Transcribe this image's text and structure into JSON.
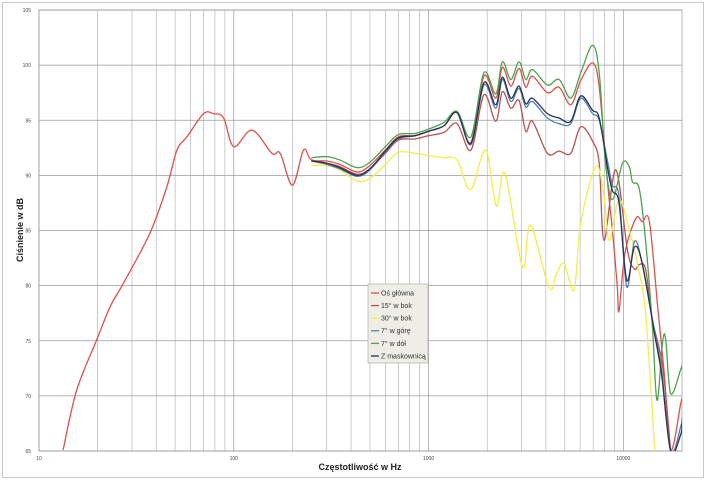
{
  "chart_data": {
    "type": "line",
    "title": "",
    "xlabel": "Częstotliwość w Hz",
    "ylabel": "Ciśnienie w dB",
    "xscale": "log",
    "xlim": [
      10,
      20000
    ],
    "ylim": [
      65,
      105
    ],
    "x_ticks": [
      "10",
      "100",
      "1000",
      "10000"
    ],
    "x_tick_values": [
      10,
      100,
      1000,
      10000
    ],
    "y_ticks": [
      "65",
      "70",
      "75",
      "80",
      "85",
      "90",
      "95",
      "100",
      "105"
    ],
    "grid": true,
    "legend_position": "center-bottom",
    "series": [
      {
        "name": "Oś główna",
        "color": "#e0504a",
        "x": [
          13.3,
          15.6,
          19.8,
          23.2,
          27.1,
          37.2,
          45.4,
          51.1,
          57.5,
          70,
          78.7,
          88.7,
          100,
          124,
          157,
          173,
          200,
          228,
          250,
          300,
          350,
          430,
          500,
          600,
          700,
          850,
          1000,
          1200,
          1400,
          1650,
          1923,
          2213,
          2393,
          2644,
          2912,
          3155,
          3415,
          4074,
          4675,
          5370,
          6043,
          6947,
          7516,
          8330,
          8790,
          9300,
          9500,
          10200,
          11600,
          12500,
          13600,
          15000,
          16200,
          17500,
          19700,
          20000
        ],
        "y": [
          65.1,
          70.5,
          75.1,
          78.1,
          80.2,
          84.8,
          89.0,
          92.3,
          93.5,
          95.6,
          95.6,
          95.2,
          92.6,
          94.1,
          92.0,
          92.0,
          89.1,
          92.3,
          91.4,
          91.3,
          91.0,
          90.3,
          90.9,
          92.3,
          93.5,
          93.6,
          94.0,
          94.5,
          95.7,
          93.0,
          99.0,
          97.0,
          99.8,
          98.1,
          99.7,
          98.0,
          99.0,
          97.5,
          98.0,
          96.4,
          98.6,
          100.2,
          98.0,
          89.0,
          85.0,
          80.0,
          77.7,
          83.0,
          86.1,
          85.8,
          85.8,
          78.1,
          72.1,
          65.1,
          69.3,
          69.6
        ]
      },
      {
        "name": "15° w bok",
        "color": "#b85450",
        "x": [
          250,
          300,
          350,
          430,
          500,
          600,
          700,
          850,
          1000,
          1200,
          1400,
          1650,
          1923,
          2213,
          2393,
          2644,
          2912,
          3155,
          3415,
          4074,
          4675,
          5370,
          6043,
          6947,
          7516,
          7960,
          9140,
          10500,
          11400,
          12060,
          13000,
          14100,
          15900,
          17500
        ],
        "y": [
          91.4,
          91.1,
          90.8,
          90.1,
          90.6,
          92.0,
          93.2,
          93.3,
          93.6,
          93.9,
          94.7,
          92.3,
          97.3,
          94.9,
          97.6,
          96.1,
          96.8,
          94.0,
          94.9,
          92.0,
          92.2,
          92.0,
          94.4,
          93.1,
          91.1,
          84.1,
          90.5,
          83.2,
          81.5,
          81.9,
          81.5,
          76.9,
          72.7,
          65.0
        ]
      },
      {
        "name": "30° w bok",
        "color": "#f2ee4a",
        "x": [
          250,
          300,
          350,
          430,
          500,
          600,
          700,
          850,
          1000,
          1200,
          1400,
          1643,
          1963,
          2228,
          2467,
          3034,
          3336,
          4159,
          4540,
          4966,
          5585,
          6043,
          7227,
          7962,
          8450,
          9500,
          10700,
          11800,
          13000,
          14500
        ],
        "y": [
          90.9,
          90.9,
          90.5,
          89.5,
          89.7,
          91.0,
          92.1,
          92.0,
          91.8,
          91.6,
          91.4,
          88.7,
          92.3,
          87.2,
          90.2,
          81.7,
          85.5,
          79.8,
          81.1,
          82.0,
          79.6,
          85.7,
          90.8,
          88.1,
          84.1,
          87.8,
          85.1,
          82.0,
          77.5,
          65.0
        ]
      },
      {
        "name": "7° w górę",
        "color": "#4f7fbd",
        "x": [
          250,
          300,
          350,
          430,
          500,
          600,
          700,
          850,
          1000,
          1200,
          1400,
          1650,
          1923,
          2213,
          2393,
          2644,
          2912,
          3155,
          3415,
          4074,
          4675,
          5370,
          6043,
          6947,
          7516,
          8330,
          8790,
          9500,
          10400,
          11400,
          12500,
          14500,
          15700,
          17500,
          19700,
          20000
        ],
        "y": [
          91.3,
          91.0,
          90.6,
          89.9,
          90.5,
          92.1,
          93.3,
          93.6,
          94.0,
          94.5,
          95.7,
          92.8,
          98.2,
          96.1,
          98.7,
          96.7,
          97.9,
          96.2,
          96.7,
          95.2,
          94.7,
          94.7,
          97.0,
          95.6,
          95.0,
          91.1,
          89.1,
          88.1,
          79.9,
          84.0,
          82.0,
          75.7,
          72.4,
          65.0,
          67.2,
          68.0
        ]
      },
      {
        "name": "7° w dół",
        "color": "#4ea24e",
        "x": [
          250,
          300,
          350,
          430,
          500,
          600,
          700,
          850,
          1000,
          1200,
          1400,
          1650,
          1923,
          2213,
          2393,
          2644,
          2912,
          3155,
          3415,
          4074,
          4675,
          5370,
          6043,
          6947,
          7516,
          8100,
          8790,
          9900,
          10720,
          11140,
          12060,
          13000,
          14100,
          14880,
          15900,
          16500,
          17500,
          19700,
          20000
        ],
        "y": [
          91.6,
          91.7,
          91.4,
          90.7,
          91.2,
          92.6,
          93.7,
          93.8,
          94.2,
          94.8,
          95.8,
          93.5,
          99.3,
          97.4,
          100.3,
          98.7,
          100.3,
          98.7,
          99.6,
          98.2,
          98.7,
          97.0,
          99.3,
          101.8,
          99.3,
          91.1,
          87.8,
          91.1,
          90.8,
          89.4,
          88.8,
          84.1,
          76.3,
          69.6,
          74.9,
          75.1,
          70.2,
          72.4,
          72.8
        ]
      },
      {
        "name": "Z maskownicą",
        "color": "#2a3350",
        "x": [
          250,
          300,
          350,
          430,
          500,
          600,
          700,
          850,
          1000,
          1200,
          1400,
          1650,
          1923,
          2213,
          2393,
          2644,
          2912,
          3155,
          3415,
          4074,
          4675,
          5370,
          6043,
          6947,
          7516,
          8330,
          8790,
          9500,
          10400,
          11400,
          12500,
          14500,
          15700,
          17500,
          19700,
          20000
        ],
        "y": [
          91.3,
          91.1,
          90.7,
          90.0,
          90.6,
          92.2,
          93.4,
          93.6,
          94.0,
          94.5,
          95.7,
          92.9,
          98.4,
          96.4,
          98.9,
          97.0,
          98.1,
          96.5,
          97.0,
          95.6,
          95.2,
          94.9,
          97.2,
          95.9,
          95.2,
          90.5,
          88.6,
          87.5,
          80.5,
          83.5,
          82.0,
          75.5,
          72.0,
          65.0,
          66.5,
          67.5
        ]
      }
    ]
  }
}
